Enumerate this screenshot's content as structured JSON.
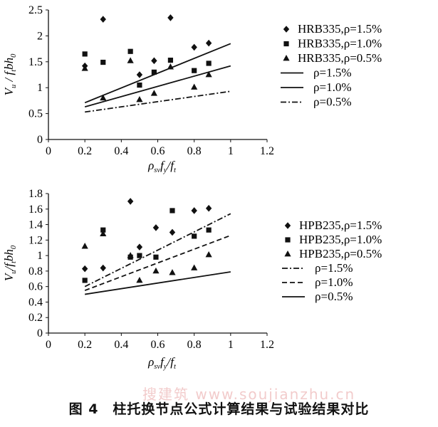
{
  "chart_data": [
    {
      "type": "scatter",
      "title": "",
      "ylabel": {
        "main": "V",
        "sub": "u",
        "rest": " / f",
        "sub2": "t",
        "rest2": "bh",
        "sub3": "0"
      },
      "xlabel": {
        "main": "ρ",
        "sub": "sv",
        "rest": "f",
        "sub2": "y",
        "rest2": "/f",
        "sub3": "t"
      },
      "xlim": [
        0,
        1.2
      ],
      "ylim": [
        0,
        2.5
      ],
      "xticks": [
        "0",
        "0.2",
        "0.4",
        "0.6",
        "0.8",
        "1",
        "1.2"
      ],
      "xtick_values": [
        0,
        0.2,
        0.4,
        0.6,
        0.8,
        1.0,
        1.2
      ],
      "yticks": [
        "0",
        "0.5",
        "1",
        "1.5",
        "2",
        "2.5"
      ],
      "ytick_values": [
        0,
        0.5,
        1.0,
        1.5,
        2.0,
        2.5
      ],
      "grid": false,
      "legend_position": "right",
      "series": [
        {
          "name": "HRB335,ρ=1.5%",
          "marker": "diamond",
          "points": [
            [
              0.2,
              1.42
            ],
            [
              0.3,
              2.32
            ],
            [
              0.5,
              1.25
            ],
            [
              0.58,
              1.52
            ],
            [
              0.67,
              2.35
            ],
            [
              0.8,
              1.78
            ],
            [
              0.88,
              1.86
            ]
          ]
        },
        {
          "name": "HRB335,ρ=1.0%",
          "marker": "square",
          "points": [
            [
              0.2,
              1.65
            ],
            [
              0.3,
              1.49
            ],
            [
              0.45,
              1.7
            ],
            [
              0.5,
              1.05
            ],
            [
              0.58,
              1.3
            ],
            [
              0.67,
              1.53
            ],
            [
              0.8,
              1.33
            ],
            [
              0.88,
              1.47
            ]
          ]
        },
        {
          "name": "HRB335,ρ=0.5%",
          "marker": "triangle",
          "points": [
            [
              0.2,
              1.37
            ],
            [
              0.3,
              0.8
            ],
            [
              0.45,
              1.52
            ],
            [
              0.5,
              0.77
            ],
            [
              0.58,
              0.89
            ],
            [
              0.67,
              1.4
            ],
            [
              0.8,
              1.01
            ],
            [
              0.88,
              1.25
            ]
          ]
        },
        {
          "name": "ρ=1.5%",
          "line": "solid",
          "points": [
            [
              0.2,
              0.71
            ],
            [
              1.0,
              1.85
            ]
          ]
        },
        {
          "name": "ρ=1.0%",
          "line": "solid",
          "points": [
            [
              0.2,
              0.63
            ],
            [
              1.0,
              1.42
            ]
          ]
        },
        {
          "name": "ρ=0.5%",
          "line": "dashdot",
          "points": [
            [
              0.2,
              0.53
            ],
            [
              1.0,
              0.93
            ]
          ]
        }
      ]
    },
    {
      "type": "scatter",
      "title": "",
      "ylabel": {
        "main": "V",
        "sub": "u",
        "rest": "/f",
        "sub2": "t",
        "rest2": "bh",
        "sub3": "0"
      },
      "xlabel": {
        "main": "ρ",
        "sub": "sv",
        "rest": "f",
        "sub2": "y",
        "rest2": "/f",
        "sub3": "t"
      },
      "xlim": [
        0,
        1.2
      ],
      "ylim": [
        0,
        1.8
      ],
      "xticks": [
        "0",
        "0.2",
        "0.4",
        "0.6",
        "0.8",
        "1",
        "1.2"
      ],
      "xtick_values": [
        0,
        0.2,
        0.4,
        0.6,
        0.8,
        1.0,
        1.2
      ],
      "yticks": [
        "0",
        "0.2",
        "0.4",
        "0.6",
        "0.8",
        "1",
        "1.2",
        "1.4",
        "1.6",
        "1.8"
      ],
      "ytick_values": [
        0,
        0.2,
        0.4,
        0.6,
        0.8,
        1.0,
        1.2,
        1.4,
        1.6,
        1.8
      ],
      "grid": false,
      "legend_position": "right",
      "series": [
        {
          "name": "HPB235,ρ=1.5%",
          "marker": "diamond",
          "points": [
            [
              0.2,
              0.83
            ],
            [
              0.3,
              0.84
            ],
            [
              0.45,
              1.7
            ],
            [
              0.5,
              1.11
            ],
            [
              0.59,
              1.36
            ],
            [
              0.68,
              1.3
            ],
            [
              0.8,
              1.58
            ],
            [
              0.88,
              1.61
            ]
          ]
        },
        {
          "name": "HPB235,ρ=1.0%",
          "marker": "square",
          "points": [
            [
              0.2,
              0.68
            ],
            [
              0.3,
              1.33
            ],
            [
              0.45,
              0.98
            ],
            [
              0.5,
              1.0
            ],
            [
              0.59,
              0.98
            ],
            [
              0.68,
              1.58
            ],
            [
              0.8,
              1.25
            ],
            [
              0.88,
              1.33
            ]
          ]
        },
        {
          "name": "HPB235,ρ=0.5%",
          "marker": "triangle",
          "points": [
            [
              0.2,
              1.12
            ],
            [
              0.3,
              1.28
            ],
            [
              0.45,
              1.0
            ],
            [
              0.5,
              0.68
            ],
            [
              0.59,
              0.8
            ],
            [
              0.68,
              0.78
            ],
            [
              0.8,
              0.84
            ],
            [
              0.88,
              1.01
            ]
          ]
        },
        {
          "name": "ρ=1.5%",
          "line": "dashdot",
          "points": [
            [
              0.2,
              0.6
            ],
            [
              1.0,
              1.54
            ]
          ]
        },
        {
          "name": "ρ=1.0%",
          "line": "dashed",
          "points": [
            [
              0.2,
              0.55
            ],
            [
              1.0,
              1.26
            ]
          ]
        },
        {
          "name": "ρ=0.5%",
          "line": "solid",
          "points": [
            [
              0.2,
              0.5
            ],
            [
              1.0,
              0.79
            ]
          ]
        }
      ]
    }
  ],
  "caption": "图 4　柱托换节点公式计算结果与试验结果对比",
  "watermark": "搜建筑 www.soujianzhu.cn"
}
